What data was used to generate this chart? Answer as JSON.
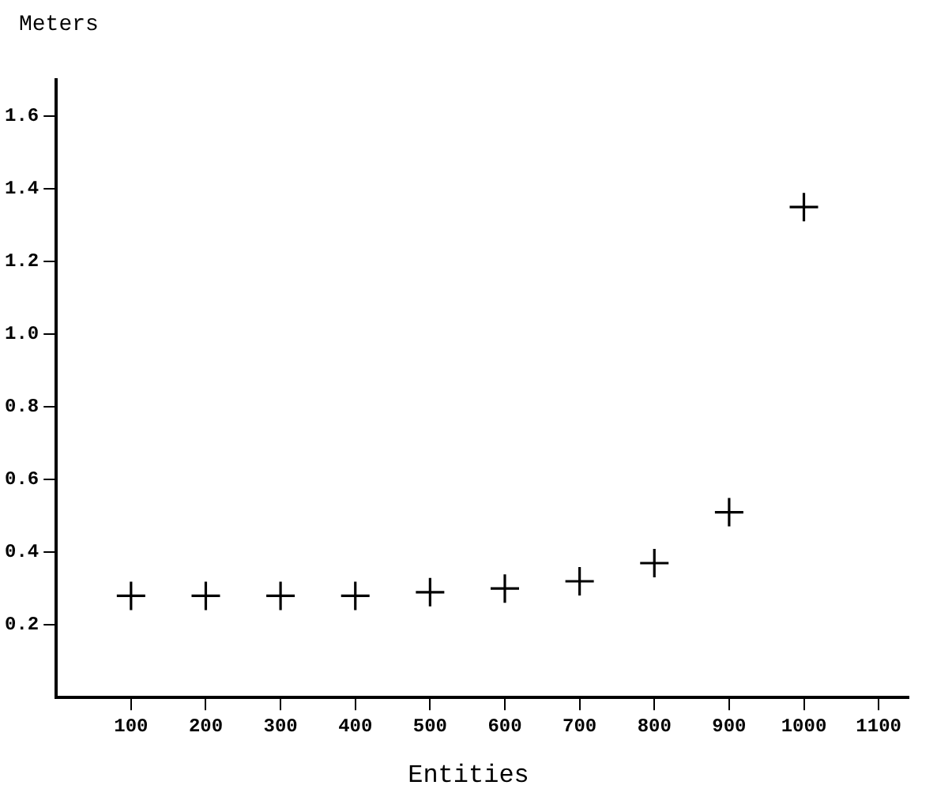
{
  "chart_data": {
    "type": "scatter",
    "xlabel": "Entities",
    "ylabel": "Meters",
    "x": [
      100,
      200,
      300,
      400,
      500,
      600,
      700,
      800,
      900,
      1000
    ],
    "series": [
      {
        "color": "#000000",
        "values": [
          0.28,
          0.28,
          0.28,
          0.28,
          0.29,
          0.3,
          0.32,
          0.37,
          0.51,
          1.35
        ]
      }
    ],
    "xlim": [
      0,
      1140
    ],
    "xticks": [
      100,
      200,
      300,
      400,
      500,
      600,
      700,
      800,
      900,
      1000,
      1100
    ],
    "ylim": [
      0,
      1.7
    ],
    "yticks": [
      {
        "value": 0.2,
        "label": "0.2"
      },
      {
        "value": 0.4,
        "label": "0.4"
      },
      {
        "value": 0.6,
        "label": "0.6"
      },
      {
        "value": 0.8,
        "label": "0.8"
      },
      {
        "value": 1.0,
        "label": "1.0"
      },
      {
        "value": 1.2,
        "label": "1.2"
      },
      {
        "value": 1.4,
        "label": "1.4"
      },
      {
        "value": 1.6,
        "label": "1.6"
      }
    ],
    "marker": "cross",
    "grid": false,
    "legend": false
  }
}
